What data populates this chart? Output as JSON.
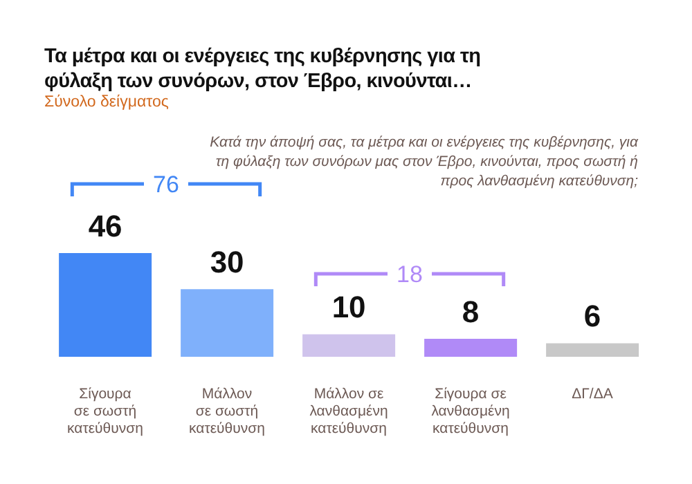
{
  "chart_data": {
    "type": "bar",
    "title": "Τα μέτρα και οι ενέργειες της κυβέρνησης για τη φύλαξη των συνόρων, στον Έβρο, κινούνται…",
    "subtitle": "Σύνολο δείγματος",
    "categories": [
      "Σίγουρα\nσε σωστή\nκατεύθυνση",
      "Μάλλον\nσε σωστή\nκατεύθυνση",
      "Μάλλον σε\nλανθασμένη\nκατεύθυνση",
      "Σίγουρα σε\nλανθασμένη\nκατεύθυνση",
      "ΔΓ/ΔΑ"
    ],
    "values": [
      46,
      30,
      10,
      8,
      6
    ],
    "colors": [
      "#4287f5",
      "#7fb0fb",
      "#cfc3ec",
      "#b08af7",
      "#c8c8c8"
    ],
    "data_labels": true,
    "annotations": [
      "Κατά την άποψή σας, τα μέτρα και οι ενέργειες της κυβέρνησης, για τη φύλαξη των συνόρων μας στον Έβρο, κινούνται, προς σωστή ή προς λανθασμένη κατεύθυνση;",
      "76",
      "18"
    ],
    "legend": false
  }
}
